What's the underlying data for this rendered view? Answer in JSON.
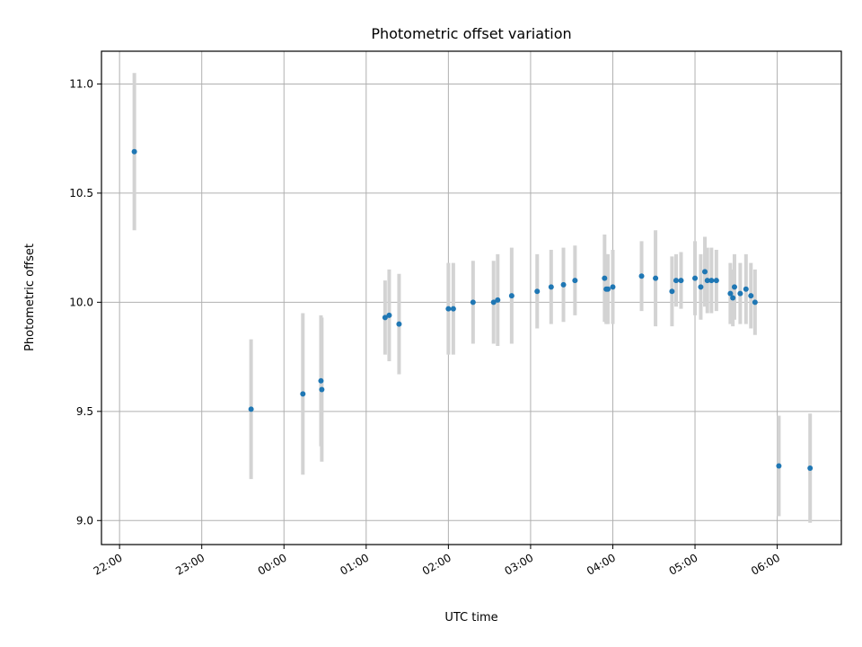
{
  "chart_data": {
    "type": "scatter",
    "title": "Photometric offset variation",
    "xlabel": "UTC time",
    "ylabel": "Photometric offset",
    "x_unit": "UTC time (hours relative to 00:00; negative = previous day)",
    "xlim": [
      -2.22,
      6.78
    ],
    "ylim": [
      8.89,
      11.15
    ],
    "grid": true,
    "x_ticks": [
      {
        "value": -2,
        "label": "22:00"
      },
      {
        "value": -1,
        "label": "23:00"
      },
      {
        "value": 0,
        "label": "00:00"
      },
      {
        "value": 1,
        "label": "01:00"
      },
      {
        "value": 2,
        "label": "02:00"
      },
      {
        "value": 3,
        "label": "03:00"
      },
      {
        "value": 4,
        "label": "04:00"
      },
      {
        "value": 5,
        "label": "05:00"
      },
      {
        "value": 6,
        "label": "06:00"
      }
    ],
    "y_ticks": [
      {
        "value": 9.0,
        "label": "9.0"
      },
      {
        "value": 9.5,
        "label": "9.5"
      },
      {
        "value": 10.0,
        "label": "10.0"
      },
      {
        "value": 10.5,
        "label": "10.5"
      },
      {
        "value": 11.0,
        "label": "11.0"
      }
    ],
    "series": [
      {
        "marker_color": "#1f77b4",
        "errorbar_color": "#d3d3d3",
        "points": [
          {
            "x": -1.82,
            "y": 10.69,
            "err": 0.36
          },
          {
            "x": -0.4,
            "y": 9.51,
            "err": 0.32
          },
          {
            "x": 0.23,
            "y": 9.58,
            "err": 0.37
          },
          {
            "x": 0.45,
            "y": 9.64,
            "err": 0.3
          },
          {
            "x": 0.46,
            "y": 9.6,
            "err": 0.33
          },
          {
            "x": 1.23,
            "y": 9.93,
            "err": 0.17
          },
          {
            "x": 1.28,
            "y": 9.94,
            "err": 0.21
          },
          {
            "x": 1.4,
            "y": 9.9,
            "err": 0.23
          },
          {
            "x": 2.0,
            "y": 9.97,
            "err": 0.21
          },
          {
            "x": 2.06,
            "y": 9.97,
            "err": 0.21
          },
          {
            "x": 2.3,
            "y": 10.0,
            "err": 0.19
          },
          {
            "x": 2.55,
            "y": 10.0,
            "err": 0.19
          },
          {
            "x": 2.6,
            "y": 10.01,
            "err": 0.21
          },
          {
            "x": 2.77,
            "y": 10.03,
            "err": 0.22
          },
          {
            "x": 3.08,
            "y": 10.05,
            "err": 0.17
          },
          {
            "x": 3.25,
            "y": 10.07,
            "err": 0.17
          },
          {
            "x": 3.4,
            "y": 10.08,
            "err": 0.17
          },
          {
            "x": 3.54,
            "y": 10.1,
            "err": 0.16
          },
          {
            "x": 3.9,
            "y": 10.11,
            "err": 0.2
          },
          {
            "x": 3.92,
            "y": 10.06,
            "err": 0.16
          },
          {
            "x": 3.94,
            "y": 10.06,
            "err": 0.16
          },
          {
            "x": 4.0,
            "y": 10.07,
            "err": 0.17
          },
          {
            "x": 4.35,
            "y": 10.12,
            "err": 0.16
          },
          {
            "x": 4.52,
            "y": 10.11,
            "err": 0.22
          },
          {
            "x": 4.72,
            "y": 10.05,
            "err": 0.16
          },
          {
            "x": 4.77,
            "y": 10.1,
            "err": 0.12
          },
          {
            "x": 4.83,
            "y": 10.1,
            "err": 0.13
          },
          {
            "x": 5.0,
            "y": 10.11,
            "err": 0.17
          },
          {
            "x": 5.07,
            "y": 10.07,
            "err": 0.15
          },
          {
            "x": 5.12,
            "y": 10.14,
            "err": 0.16
          },
          {
            "x": 5.15,
            "y": 10.1,
            "err": 0.15
          },
          {
            "x": 5.2,
            "y": 10.1,
            "err": 0.15
          },
          {
            "x": 5.26,
            "y": 10.1,
            "err": 0.14
          },
          {
            "x": 5.43,
            "y": 10.04,
            "err": 0.14
          },
          {
            "x": 5.46,
            "y": 10.02,
            "err": 0.13
          },
          {
            "x": 5.48,
            "y": 10.07,
            "err": 0.15
          },
          {
            "x": 5.55,
            "y": 10.04,
            "err": 0.14
          },
          {
            "x": 5.62,
            "y": 10.06,
            "err": 0.16
          },
          {
            "x": 5.68,
            "y": 10.03,
            "err": 0.15
          },
          {
            "x": 5.73,
            "y": 10.0,
            "err": 0.15
          },
          {
            "x": 6.02,
            "y": 9.25,
            "err": 0.23
          },
          {
            "x": 6.4,
            "y": 9.24,
            "err": 0.25
          }
        ]
      }
    ]
  }
}
